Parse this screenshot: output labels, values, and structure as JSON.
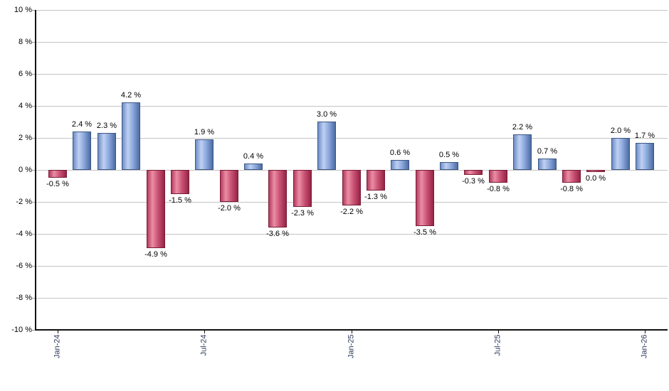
{
  "chart_data": {
    "type": "bar",
    "title": "",
    "xlabel": "",
    "ylabel": "",
    "ylim": [
      -10,
      10
    ],
    "grid": true,
    "legend_position": "none",
    "y_tick_labels": [
      "10 %",
      "8 %",
      "6 %",
      "4 %",
      "2 %",
      "0 %",
      "-2 %",
      "-4 %",
      "-6 %",
      "-8 %",
      "-10 %"
    ],
    "y_tick_values": [
      10,
      8,
      6,
      4,
      2,
      0,
      -2,
      -4,
      -6,
      -8,
      -10
    ],
    "x_axis_tick_labels": [
      "Jan-24",
      "Jul-24",
      "Jan-25",
      "Jul-25",
      "Jan-26"
    ],
    "points": [
      {
        "month": "Jan-24",
        "value": -0.5,
        "label": "-0.5 %"
      },
      {
        "month": "Feb-24",
        "value": 2.4,
        "label": "2.4 %"
      },
      {
        "month": "Mar-24",
        "value": 2.3,
        "label": "2.3 %"
      },
      {
        "month": "Apr-24",
        "value": 4.2,
        "label": "4.2 %"
      },
      {
        "month": "May-24",
        "value": -4.9,
        "label": "-4.9 %"
      },
      {
        "month": "Jun-24",
        "value": -1.5,
        "label": "-1.5 %"
      },
      {
        "month": "Jul-24",
        "value": 1.9,
        "label": "1.9 %"
      },
      {
        "month": "Aug-24",
        "value": -2.0,
        "label": "-2.0 %"
      },
      {
        "month": "Sep-24",
        "value": 0.4,
        "label": "0.4 %"
      },
      {
        "month": "Oct-24",
        "value": -3.6,
        "label": "-3.6 %"
      },
      {
        "month": "Nov-24",
        "value": -2.3,
        "label": "-2.3 %"
      },
      {
        "month": "Dec-24",
        "value": 3.0,
        "label": "3.0 %"
      },
      {
        "month": "Jan-25",
        "value": -2.2,
        "label": "-2.2 %"
      },
      {
        "month": "Feb-25",
        "value": -1.3,
        "label": "-1.3 %"
      },
      {
        "month": "Mar-25",
        "value": 0.6,
        "label": "0.6 %"
      },
      {
        "month": "Apr-25",
        "value": -3.5,
        "label": "-3.5 %"
      },
      {
        "month": "May-25",
        "value": 0.5,
        "label": "0.5 %"
      },
      {
        "month": "Jun-25",
        "value": -0.3,
        "label": "-0.3 %"
      },
      {
        "month": "Jul-25",
        "value": -0.8,
        "label": "-0.8 %"
      },
      {
        "month": "Aug-25",
        "value": 2.2,
        "label": "2.2 %"
      },
      {
        "month": "Sep-25",
        "value": 0.7,
        "label": "0.7 %"
      },
      {
        "month": "Oct-25",
        "value": -0.8,
        "label": "-0.8 %"
      },
      {
        "month": "Nov-25",
        "value": 0.0,
        "label": "0.0 %"
      },
      {
        "month": "Dec-25",
        "value": 2.0,
        "label": "2.0 %"
      },
      {
        "month": "Jan-26",
        "value": 1.7,
        "label": "1.7 %"
      }
    ],
    "colors": {
      "positive_bar_mid": "#8ca8dd",
      "positive_bar_border": "#3c5781",
      "negative_bar_mid": "#cc5577",
      "negative_bar_border": "#7a1d37",
      "gridline": "#c4c4c4",
      "axis": "#111111",
      "value_label": "#000000",
      "x_tick_label": "#2b3a5c",
      "background": "#ffffff"
    }
  }
}
